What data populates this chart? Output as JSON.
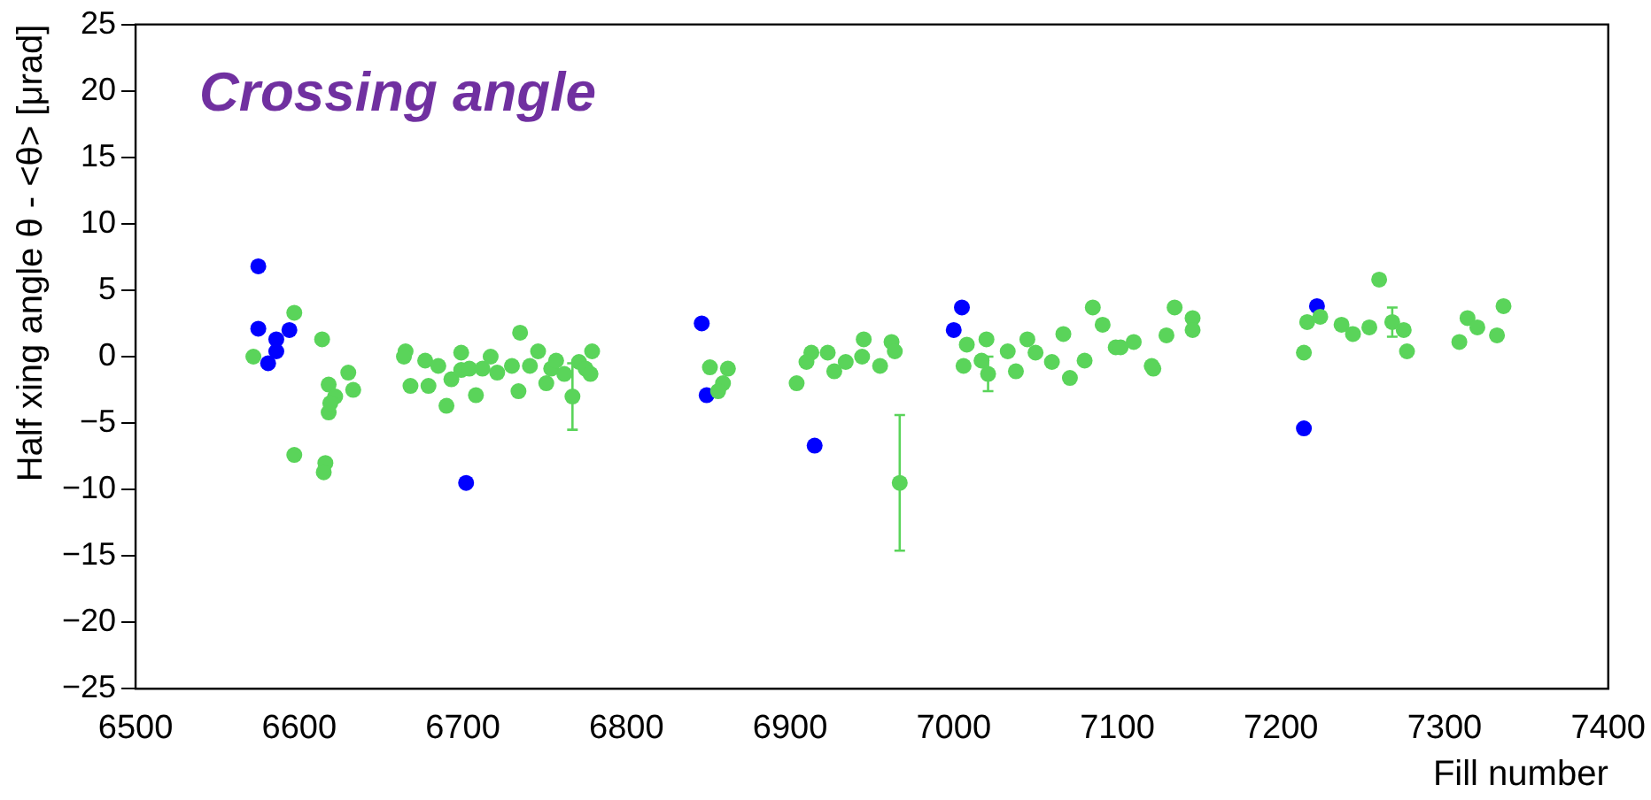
{
  "chart_data": {
    "type": "scatter",
    "title": "Crossing angle",
    "xlabel": "Fill number",
    "ylabel": "Half xing angle θ - <θ> [μrad]",
    "xlim": [
      6500,
      7400
    ],
    "xticks": [
      6500,
      6600,
      6700,
      6800,
      6900,
      7000,
      7100,
      7200,
      7300,
      7400
    ],
    "ylim": [
      -25,
      25
    ],
    "yticks": [
      -25,
      -20,
      -15,
      -10,
      -5,
      0,
      5,
      10,
      15,
      20,
      25
    ],
    "grid": false,
    "legend": false,
    "marker": "circle",
    "series": [
      {
        "color": "#5ad45a",
        "x": [
          6572,
          6597,
          6614,
          6597,
          6616,
          6615,
          6618,
          6630,
          6633,
          6622,
          6618,
          6619,
          6665,
          6664,
          6668,
          6677,
          6679,
          6685,
          6690,
          6693,
          6699,
          6699,
          6708,
          6704,
          6712,
          6717,
          6721,
          6730,
          6734,
          6735,
          6741,
          6746,
          6751,
          6754,
          6757,
          6762,
          6767,
          6771,
          6775,
          6779,
          6778,
          6851,
          6862,
          6859,
          6856,
          6904,
          6913,
          6910,
          6923,
          6927,
          6934,
          6945,
          6944,
          6955,
          6962,
          6964,
          6967,
          7008,
          7006,
          7020,
          7017,
          7021,
          7033,
          7038,
          7045,
          7050,
          7060,
          7067,
          7071,
          7080,
          7085,
          7091,
          7099,
          7110,
          7121,
          7102,
          7122,
          7130,
          7135,
          7146,
          7146,
          7214,
          7216,
          7224,
          7237,
          7244,
          7254,
          7260,
          7268,
          7275,
          7277,
          7309,
          7314,
          7320,
          7332,
          7336
        ],
        "values": [
          0.0,
          3.3,
          1.3,
          -7.4,
          -8.0,
          -8.7,
          -2.1,
          -1.2,
          -2.5,
          -3.0,
          -4.2,
          -3.5,
          0.4,
          0.0,
          -2.2,
          -0.3,
          -2.2,
          -0.7,
          -3.7,
          -1.7,
          0.3,
          -1.0,
          -2.9,
          -0.9,
          -0.9,
          0.0,
          -1.2,
          -0.7,
          -2.6,
          1.8,
          -0.7,
          0.4,
          -2.0,
          -0.9,
          -0.3,
          -1.3,
          -3.0,
          -0.4,
          -0.9,
          0.4,
          -1.3,
          -0.8,
          -0.9,
          -2.0,
          -2.6,
          -2.0,
          0.3,
          -0.4,
          0.3,
          -1.1,
          -0.4,
          1.3,
          0.0,
          -0.7,
          1.1,
          0.4,
          -9.5,
          0.9,
          -0.7,
          1.3,
          -0.3,
          -1.3,
          0.4,
          -1.1,
          1.3,
          0.3,
          -0.4,
          1.7,
          -1.6,
          -0.3,
          3.7,
          2.4,
          0.7,
          1.1,
          -0.7,
          0.7,
          -0.9,
          1.6,
          3.7,
          2.9,
          2.0,
          0.3,
          2.6,
          3.0,
          2.4,
          1.7,
          2.2,
          5.8,
          2.6,
          2.0,
          0.4,
          1.1,
          2.9,
          2.2,
          1.6,
          3.8
        ],
        "errors": [
          null,
          null,
          null,
          null,
          null,
          null,
          null,
          null,
          null,
          null,
          null,
          null,
          null,
          null,
          null,
          null,
          null,
          null,
          null,
          null,
          null,
          null,
          null,
          null,
          null,
          null,
          null,
          null,
          null,
          null,
          null,
          null,
          null,
          null,
          null,
          null,
          2.5,
          null,
          null,
          null,
          null,
          null,
          null,
          null,
          null,
          null,
          null,
          null,
          null,
          null,
          null,
          null,
          null,
          null,
          null,
          null,
          5.1,
          null,
          null,
          null,
          null,
          1.3,
          null,
          null,
          null,
          null,
          null,
          null,
          null,
          null,
          null,
          null,
          null,
          null,
          null,
          null,
          null,
          null,
          null,
          null,
          null,
          null,
          null,
          null,
          null,
          null,
          null,
          null,
          1.1,
          null,
          null,
          null,
          null,
          null,
          null,
          null
        ]
      },
      {
        "color": "#0000ff",
        "x": [
          6575,
          6575,
          6586,
          6586,
          6581,
          6594,
          6702,
          6846,
          6849,
          6915,
          7005,
          7000,
          7222,
          7214
        ],
        "values": [
          6.8,
          2.1,
          1.3,
          0.4,
          -0.5,
          2.0,
          -9.5,
          2.5,
          -2.9,
          -6.7,
          3.7,
          2.0,
          3.8,
          -5.4
        ]
      }
    ]
  }
}
